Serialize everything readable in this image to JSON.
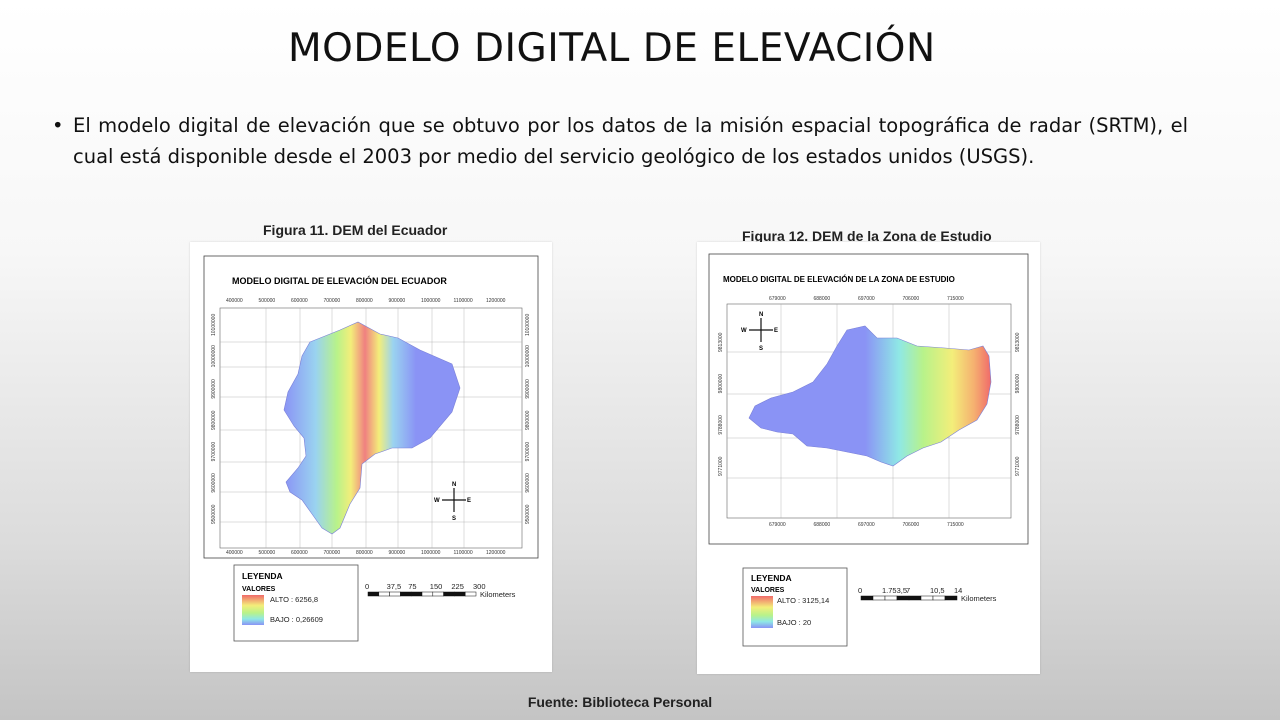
{
  "slide": {
    "title": "MODELO DIGITAL DE ELEVACIÓN",
    "bullet": "El modelo digital de elevación que se obtuvo por los datos de la misión espacial topográfica de radar (SRTM), el cual está disponible desde el 2003 por medio del servicio geológico de los estados unidos (USGS).",
    "source": "Fuente: Biblioteca Personal"
  },
  "figure11": {
    "caption": "Figura 11. DEM del Ecuador",
    "map_title": "MODELO DIGITAL DE ELEVACIÓN DEL ECUADOR",
    "x_ticks": [
      "400000",
      "500000",
      "600000",
      "700000",
      "800000",
      "900000",
      "1000000",
      "1100000",
      "1200000"
    ],
    "y_ticks": [
      "10100000",
      "10000000",
      "9900000",
      "9800000",
      "9700000",
      "9600000",
      "9500000"
    ],
    "compass": {
      "n": "N",
      "s": "S",
      "e": "E",
      "w": "W"
    },
    "legend": {
      "title": "LEYENDA",
      "subtitle": "VALORES",
      "high": "ALTO : 6256,8",
      "low": "BAJO : 0,26609"
    },
    "scale": {
      "ticks": [
        "0",
        "37,5",
        "75",
        "150",
        "225",
        "300"
      ],
      "unit": "Kilometers"
    }
  },
  "figure12": {
    "caption": "Figura 12. DEM de la Zona de Estudio",
    "map_title": "MODELO DIGITAL DE ELEVACIÓN DE LA ZONA DE ESTUDIO",
    "x_ticks": [
      "679000",
      "688000",
      "697000",
      "706000",
      "715000"
    ],
    "y_ticks": [
      "9813000",
      "9800000",
      "9788000",
      "9771000"
    ],
    "compass": {
      "n": "N",
      "s": "S",
      "e": "E",
      "w": "W"
    },
    "legend": {
      "title": "LEYENDA",
      "subtitle": "VALORES",
      "high": "ALTO : 3125,14",
      "low": "BAJO : 20"
    },
    "scale": {
      "ticks": [
        "0",
        "1.753,5",
        "7",
        "10,5",
        "14"
      ],
      "unit": "Kilometers"
    }
  },
  "colors": {
    "low": "#8a93f5",
    "mid": "#8fe8e6",
    "green": "#b8f28a",
    "yellow": "#f3ee7a",
    "high": "#f06a6a"
  }
}
